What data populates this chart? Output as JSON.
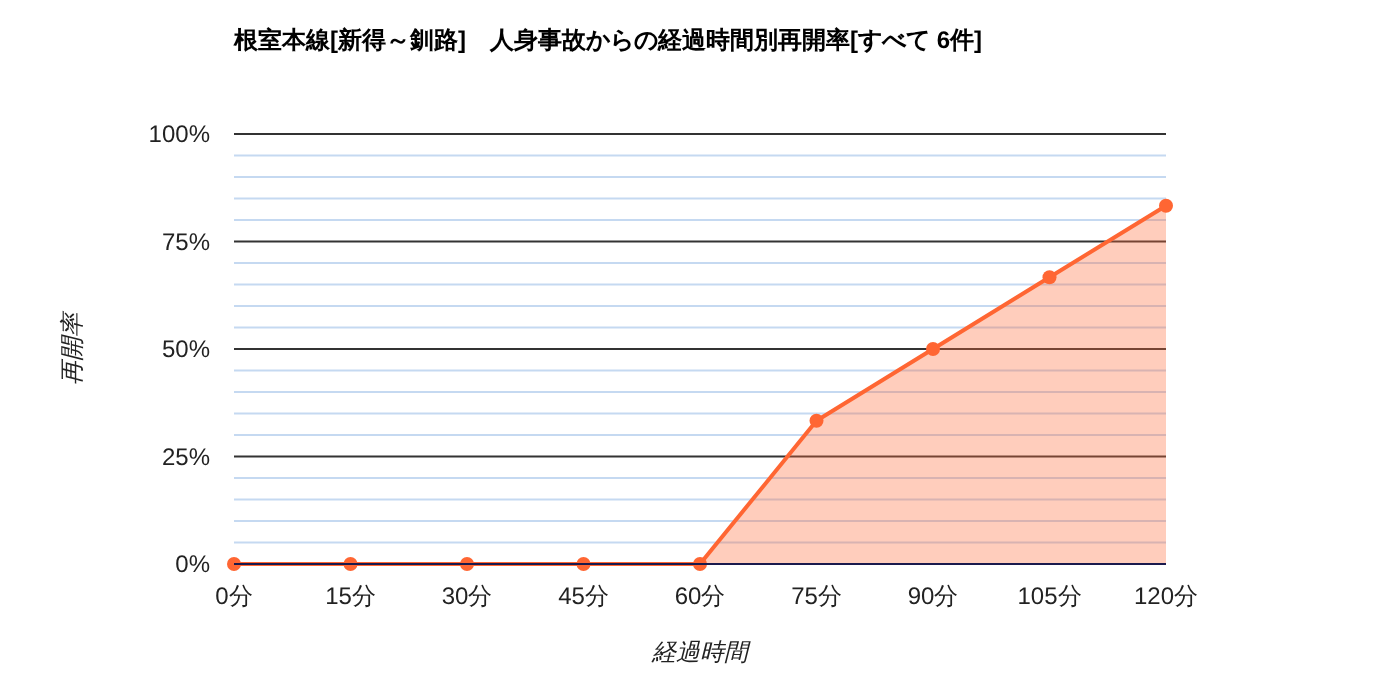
{
  "chart_data": {
    "type": "area",
    "title": "根室本線[新得～釧路]　人身事故からの経過時間別再開率[すべて 6件]",
    "xlabel": "経過時間",
    "ylabel": "再開率",
    "categories": [
      "0分",
      "15分",
      "30分",
      "45分",
      "60分",
      "75分",
      "90分",
      "105分",
      "120分"
    ],
    "series": [
      {
        "color": "#ff6633",
        "values": [
          0,
          0,
          0,
          0,
          0,
          33.3,
          50,
          66.7,
          83.3
        ]
      }
    ],
    "ylim": [
      0,
      100
    ],
    "yticks": [
      {
        "value": 0,
        "label": "0%"
      },
      {
        "value": 5,
        "label": null
      },
      {
        "value": 10,
        "label": null
      },
      {
        "value": 15,
        "label": null
      },
      {
        "value": 20,
        "label": null
      },
      {
        "value": 25,
        "label": "25%"
      },
      {
        "value": 30,
        "label": null
      },
      {
        "value": 35,
        "label": null
      },
      {
        "value": 40,
        "label": null
      },
      {
        "value": 45,
        "label": null
      },
      {
        "value": 50,
        "label": "50%"
      },
      {
        "value": 55,
        "label": null
      },
      {
        "value": 60,
        "label": null
      },
      {
        "value": 65,
        "label": null
      },
      {
        "value": 70,
        "label": null
      },
      {
        "value": 75,
        "label": "75%"
      },
      {
        "value": 80,
        "label": null
      },
      {
        "value": 85,
        "label": null
      },
      {
        "value": 90,
        "label": null
      },
      {
        "value": 95,
        "label": null
      },
      {
        "value": 100,
        "label": "100%"
      }
    ],
    "grid": "y",
    "marker": "circle"
  }
}
